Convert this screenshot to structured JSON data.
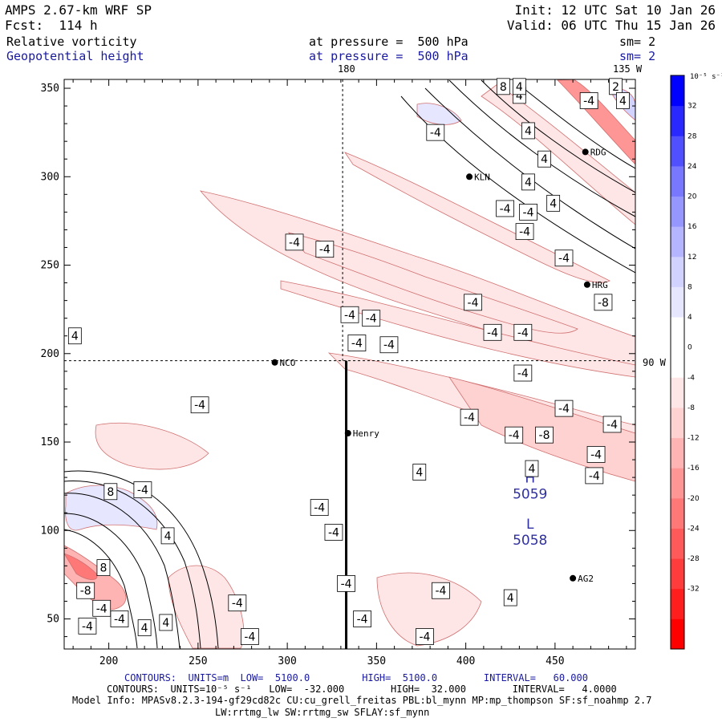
{
  "header": {
    "model": "AMPS 2.67-km WRF SP",
    "forecast": "Fcst:  114 h",
    "init": "Init: 12 UTC Sat 10 Jan 26",
    "valid": "Valid: 06 UTC Thu 15 Jan 26",
    "field1": "Relative vorticity",
    "field1_level": "at pressure =  500 hPa",
    "field1_sm": "sm= 2",
    "field2": "Geopotential height",
    "field2_level": "at pressure =  500 hPa",
    "field2_sm": "sm= 2"
  },
  "chart_data": {
    "type": "heatmap",
    "xlim": [
      175,
      495
    ],
    "ylim": [
      33,
      355
    ],
    "x_ticks": [
      "200",
      "250",
      "300",
      "350",
      "400",
      "450"
    ],
    "y_ticks": [
      "50",
      "100",
      "150",
      "200",
      "250",
      "300",
      "350"
    ],
    "top_labels": [
      "180",
      "135 W"
    ],
    "right_label": "90 W",
    "crosshair": {
      "x": 331,
      "y": 196
    },
    "cross_section_line": {
      "x": 333,
      "y_from": 33,
      "y_to": 196
    },
    "stations": [
      {
        "name": "KLN",
        "x": 402,
        "y": 300
      },
      {
        "name": "RDG",
        "x": 467,
        "y": 314
      },
      {
        "name": "HRG",
        "x": 468,
        "y": 239
      },
      {
        "name": "NCO",
        "x": 293,
        "y": 195
      },
      {
        "name": "Henry",
        "x": 334,
        "y": 155
      },
      {
        "name": "AG2",
        "x": 460,
        "y": 73
      }
    ],
    "extrema": [
      {
        "label": "H",
        "value": "5059",
        "x": 436,
        "y": 127
      },
      {
        "label": "L",
        "value": "5058",
        "x": 436,
        "y": 101
      }
    ],
    "contour_labels": [
      {
        "t": "-4",
        "x": 469,
        "y": 343
      },
      {
        "t": "4",
        "x": 430,
        "y": 346
      },
      {
        "t": "8",
        "x": 421,
        "y": 351
      },
      {
        "t": "4",
        "x": 430,
        "y": 351
      },
      {
        "t": "2",
        "x": 484,
        "y": 351
      },
      {
        "t": "4",
        "x": 488,
        "y": 343
      },
      {
        "t": "4",
        "x": 435,
        "y": 326
      },
      {
        "t": "4",
        "x": 444,
        "y": 310
      },
      {
        "t": "4",
        "x": 435,
        "y": 297
      },
      {
        "t": "4",
        "x": 449,
        "y": 285
      },
      {
        "t": "-4",
        "x": 422,
        "y": 282
      },
      {
        "t": "-4",
        "x": 435,
        "y": 280
      },
      {
        "t": "-4",
        "x": 433,
        "y": 269
      },
      {
        "t": "-4",
        "x": 455,
        "y": 254
      },
      {
        "t": "-4",
        "x": 383,
        "y": 325
      },
      {
        "t": "-4",
        "x": 304,
        "y": 263
      },
      {
        "t": "-4",
        "x": 321,
        "y": 259
      },
      {
        "t": "-4",
        "x": 404,
        "y": 229
      },
      {
        "t": "-8",
        "x": 477,
        "y": 229
      },
      {
        "t": "-4",
        "x": 335,
        "y": 222
      },
      {
        "t": "-4",
        "x": 347,
        "y": 220
      },
      {
        "t": "-4",
        "x": 415,
        "y": 212
      },
      {
        "t": "-4",
        "x": 432,
        "y": 212
      },
      {
        "t": "-4",
        "x": 339,
        "y": 206
      },
      {
        "t": "-4",
        "x": 357,
        "y": 205
      },
      {
        "t": "4",
        "x": 181,
        "y": 210
      },
      {
        "t": "-4",
        "x": 432,
        "y": 189
      },
      {
        "t": "-4",
        "x": 251,
        "y": 171
      },
      {
        "t": "-4",
        "x": 402,
        "y": 164
      },
      {
        "t": "-4",
        "x": 455,
        "y": 169
      },
      {
        "t": "-4",
        "x": 427,
        "y": 154
      },
      {
        "t": "-8",
        "x": 444,
        "y": 154
      },
      {
        "t": "-4",
        "x": 482,
        "y": 160
      },
      {
        "t": "-4",
        "x": 473,
        "y": 143
      },
      {
        "t": "4",
        "x": 437,
        "y": 135
      },
      {
        "t": "4",
        "x": 374,
        "y": 133
      },
      {
        "t": "-4",
        "x": 472,
        "y": 131
      },
      {
        "t": "8",
        "x": 201,
        "y": 122
      },
      {
        "t": "-4",
        "x": 219,
        "y": 123
      },
      {
        "t": "-4",
        "x": 318,
        "y": 113
      },
      {
        "t": "4",
        "x": 233,
        "y": 97
      },
      {
        "t": "-4",
        "x": 326,
        "y": 99
      },
      {
        "t": "8",
        "x": 197,
        "y": 79
      },
      {
        "t": "-8",
        "x": 187,
        "y": 66
      },
      {
        "t": "-4",
        "x": 333,
        "y": 70
      },
      {
        "t": "-4",
        "x": 386,
        "y": 66
      },
      {
        "t": "-4",
        "x": 196,
        "y": 56
      },
      {
        "t": "4",
        "x": 425,
        "y": 62
      },
      {
        "t": "-4",
        "x": 272,
        "y": 59
      },
      {
        "t": "-4",
        "x": 188,
        "y": 46
      },
      {
        "t": "-4",
        "x": 206,
        "y": 50
      },
      {
        "t": "4",
        "x": 220,
        "y": 45
      },
      {
        "t": "4",
        "x": 232,
        "y": 48
      },
      {
        "t": "-4",
        "x": 279,
        "y": 40
      },
      {
        "t": "-4",
        "x": 342,
        "y": 50
      },
      {
        "t": "-4",
        "x": 377,
        "y": 40
      }
    ],
    "colorbar": {
      "unit": "10⁻⁵ s⁻¹",
      "levels": [
        -36,
        -32,
        -28,
        -24,
        -20,
        -16,
        -12,
        -8,
        -4,
        0,
        4,
        8,
        12,
        16,
        20,
        24,
        28,
        32,
        36
      ],
      "tick_labels": [
        "32",
        "28",
        "24",
        "20",
        "16",
        "12",
        "8",
        "4",
        "0",
        "-4",
        "-8",
        "-12",
        "-16",
        "-20",
        "-24",
        "-28",
        "-32"
      ],
      "colors": [
        "#ff0000",
        "#ff1e1e",
        "#ff3c3c",
        "#ff5a5a",
        "#ff7878",
        "#ff9696",
        "#ffb4b4",
        "#ffd2d2",
        "#ffe6e6",
        "#ffffff",
        "#ffffff",
        "#e6e6ff",
        "#d2d2ff",
        "#b4b4ff",
        "#9696ff",
        "#7878ff",
        "#5050ff",
        "#2828ff",
        "#0000ff"
      ]
    }
  },
  "footer": {
    "line1": "CONTOURS:  UNITS=m  LOW=  5100.0         HIGH=  5100.0        INTERVAL=   60.000",
    "line2": "CONTOURS:  UNITS=10⁻⁵ s⁻¹   LOW=  -32.000        HIGH=  32.000        INTERVAL=   4.0000",
    "line3": "Model Info: MPASv8.2.3-194-gf29cd82c CU:cu_grell_freitas PBL:bl_mynn MP:mp_thompson SF:sf_noahmp 2.7",
    "line4": "LW:rrtmg_lw SW:rrtmg_sw SFLAY:sf_mynn"
  }
}
